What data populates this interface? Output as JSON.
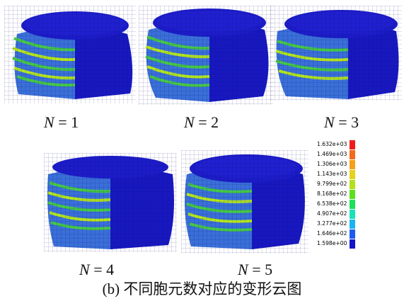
{
  "panels": [
    {
      "label_var": "N",
      "label_eq": "=",
      "label_val": "1"
    },
    {
      "label_var": "N",
      "label_eq": "=",
      "label_val": "2"
    },
    {
      "label_var": "N",
      "label_eq": "=",
      "label_val": "3"
    },
    {
      "label_var": "N",
      "label_eq": "=",
      "label_val": "4"
    },
    {
      "label_var": "N",
      "label_eq": "=",
      "label_val": "5"
    }
  ],
  "legend": {
    "values": [
      "1.632e+03",
      "1.469e+03",
      "1.306e+03",
      "1.143e+03",
      "9.799e+02",
      "8.168e+02",
      "6.538e+02",
      "4.907e+02",
      "3.277e+02",
      "1.646e+02",
      "1.598e+00"
    ],
    "colors": [
      "#ee1c1c",
      "#f46a1a",
      "#f4a01c",
      "#e4d21c",
      "#b4e01c",
      "#5ce01c",
      "#1ce05a",
      "#1ce0b8",
      "#1cb4f0",
      "#1c5cf0",
      "#1414c8"
    ]
  },
  "caption": "(b) 不同胞元数对应的变形云图",
  "colors": {
    "mesh_dark": "#1414b4",
    "mesh_light": "#3c78e6",
    "fold_green": "#3cc83c",
    "fold_yellow": "#b4e61e"
  }
}
